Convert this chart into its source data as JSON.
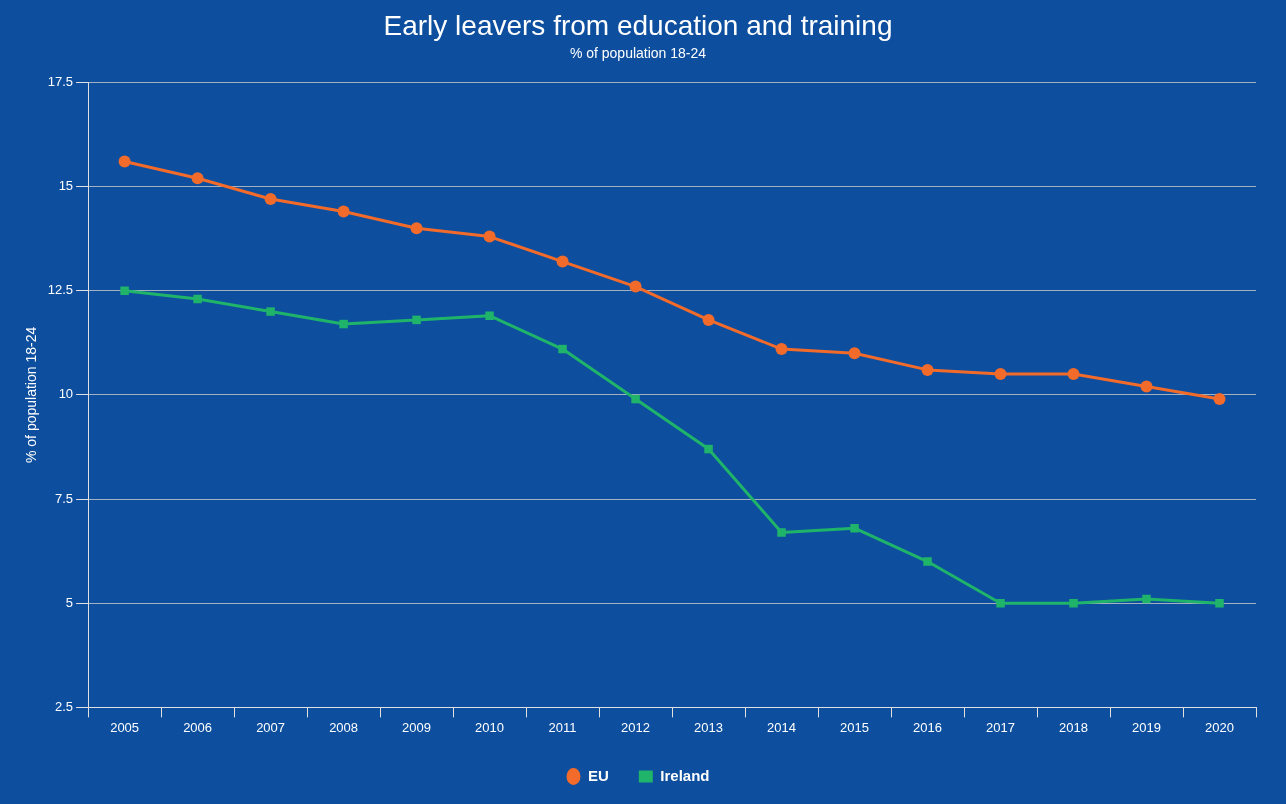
{
  "chart_data": {
    "type": "line",
    "title": "Early leavers from education and training",
    "subtitle": "% of population 18-24",
    "ylabel": "% of population 18-24",
    "categories": [
      "2005",
      "2006",
      "2007",
      "2008",
      "2009",
      "2010",
      "2011",
      "2012",
      "2013",
      "2014",
      "2015",
      "2016",
      "2017",
      "2018",
      "2019",
      "2020"
    ],
    "series": [
      {
        "name": "EU",
        "color": "#f26b2a",
        "marker": "circle",
        "values": [
          15.6,
          15.2,
          14.7,
          14.4,
          14.0,
          13.8,
          13.2,
          12.6,
          11.8,
          11.1,
          11.0,
          10.6,
          10.5,
          10.5,
          10.2,
          9.9
        ]
      },
      {
        "name": "Ireland",
        "color": "#1fb46a",
        "marker": "square",
        "values": [
          12.5,
          12.3,
          12.0,
          11.7,
          11.8,
          11.9,
          11.1,
          9.9,
          8.7,
          6.7,
          6.8,
          6.0,
          5.0,
          5.0,
          5.1,
          5.0
        ]
      }
    ],
    "ylim": [
      2.5,
      17.5
    ],
    "yticks": [
      2.5,
      5,
      7.5,
      10,
      12.5,
      15,
      17.5
    ],
    "grid": "y",
    "legend": "bottom"
  }
}
